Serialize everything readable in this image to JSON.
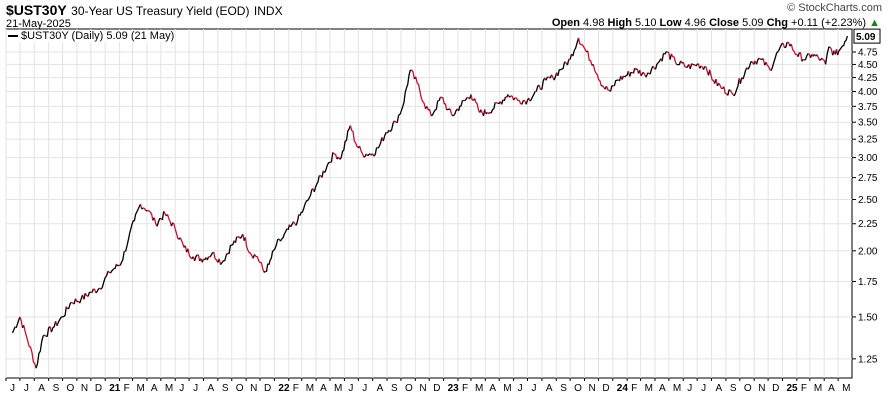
{
  "header": {
    "symbol": "$UST30Y",
    "title": "30-Year US Treasury Yield (EOD)",
    "exchange": "INDX",
    "date": "21-May-2025",
    "brand": "© StockCharts.com",
    "open_label": "Open",
    "open": "4.98",
    "high_label": "High",
    "high": "5.10",
    "low_label": "Low",
    "low": "4.96",
    "close_label": "Close",
    "close": "5.09",
    "chg_label": "Chg",
    "chg": "+0.11 (+2.23%)",
    "up_arrow": "▲"
  },
  "legend": {
    "text": "$UST30Y (Daily) 5.09 (21 May)"
  },
  "last_value_badge": "5.09",
  "chart_data": {
    "type": "line",
    "scale": "log",
    "series": [
      {
        "name": "$UST30Y (Daily)",
        "x": [
          "2020-06-15",
          "2020-07-01",
          "2020-07-15",
          "2020-08-05",
          "2020-08-20",
          "2020-09-10",
          "2020-10-01",
          "2020-10-20",
          "2020-11-10",
          "2020-12-01",
          "2020-12-20",
          "2021-01-10",
          "2021-01-20",
          "2021-02-05",
          "2021-02-20",
          "2021-03-05",
          "2021-03-18",
          "2021-04-05",
          "2021-04-20",
          "2021-05-10",
          "2021-06-01",
          "2021-06-20",
          "2021-07-10",
          "2021-08-01",
          "2021-08-20",
          "2021-09-10",
          "2021-10-01",
          "2021-10-25",
          "2021-11-10",
          "2021-11-25",
          "2021-12-10",
          "2021-12-20",
          "2022-01-05",
          "2022-01-20",
          "2022-02-05",
          "2022-02-20",
          "2022-03-05",
          "2022-03-20",
          "2022-04-05",
          "2022-04-25",
          "2022-05-10",
          "2022-05-25",
          "2022-06-14",
          "2022-06-25",
          "2022-07-10",
          "2022-08-01",
          "2022-08-15",
          "2022-08-30",
          "2022-09-20",
          "2022-10-05",
          "2022-10-21",
          "2022-11-05",
          "2022-11-20",
          "2022-12-05",
          "2022-12-28",
          "2023-01-10",
          "2023-01-20",
          "2023-02-05",
          "2023-03-01",
          "2023-03-20",
          "2023-04-05",
          "2023-05-01",
          "2023-05-20",
          "2023-06-10",
          "2023-07-01",
          "2023-07-20",
          "2023-08-10",
          "2023-08-25",
          "2023-09-10",
          "2023-10-01",
          "2023-10-19",
          "2023-11-05",
          "2023-11-20",
          "2023-12-10",
          "2023-12-27",
          "2024-01-10",
          "2024-02-01",
          "2024-02-20",
          "2024-03-10",
          "2024-04-05",
          "2024-04-25",
          "2024-05-15",
          "2024-06-10",
          "2024-07-01",
          "2024-07-20",
          "2024-08-05",
          "2024-08-25",
          "2024-09-16",
          "2024-10-05",
          "2024-10-25",
          "2024-11-15",
          "2024-12-05",
          "2024-12-25",
          "2025-01-14",
          "2025-02-01",
          "2025-02-20",
          "2025-03-05",
          "2025-03-25",
          "2025-04-04",
          "2025-04-11",
          "2025-04-25",
          "2025-05-05",
          "2025-05-21"
        ],
        "values": [
          1.4,
          1.5,
          1.38,
          1.2,
          1.38,
          1.43,
          1.5,
          1.6,
          1.62,
          1.67,
          1.7,
          1.82,
          1.85,
          1.9,
          2.1,
          2.28,
          2.45,
          2.38,
          2.25,
          2.35,
          2.2,
          2.03,
          1.95,
          1.93,
          1.98,
          1.9,
          2.05,
          2.15,
          1.98,
          1.95,
          1.82,
          1.88,
          2.05,
          2.12,
          2.22,
          2.28,
          2.4,
          2.55,
          2.7,
          2.9,
          3.05,
          3.0,
          3.45,
          3.2,
          3.05,
          3.05,
          3.15,
          3.35,
          3.5,
          3.75,
          4.38,
          4.15,
          3.8,
          3.6,
          3.9,
          3.7,
          3.6,
          3.75,
          3.95,
          3.65,
          3.65,
          3.8,
          3.95,
          3.85,
          3.85,
          4.0,
          4.2,
          4.25,
          4.4,
          4.6,
          5.05,
          4.75,
          4.5,
          4.1,
          4.0,
          4.2,
          4.3,
          4.4,
          4.3,
          4.5,
          4.75,
          4.55,
          4.45,
          4.5,
          4.45,
          4.2,
          4.05,
          3.95,
          4.25,
          4.55,
          4.6,
          4.4,
          4.8,
          4.95,
          4.7,
          4.6,
          4.7,
          4.6,
          4.5,
          4.85,
          4.7,
          4.8,
          5.09
        ]
      }
    ],
    "x_ticks": [
      "J",
      "J",
      "A",
      "S",
      "O",
      "N",
      "D",
      "21",
      "F",
      "M",
      "A",
      "M",
      "J",
      "J",
      "A",
      "S",
      "O",
      "N",
      "D",
      "22",
      "F",
      "M",
      "A",
      "M",
      "J",
      "J",
      "A",
      "S",
      "O",
      "N",
      "D",
      "23",
      "F",
      "M",
      "A",
      "M",
      "J",
      "J",
      "A",
      "S",
      "O",
      "N",
      "D",
      "24",
      "F",
      "M",
      "A",
      "M",
      "J",
      "J",
      "A",
      "S",
      "O",
      "N",
      "D",
      "25",
      "F",
      "M",
      "A",
      "M"
    ],
    "x_tick_dates": [
      "2020-06-01",
      "2020-07-01",
      "2020-08-01",
      "2020-09-01",
      "2020-10-01",
      "2020-11-01",
      "2020-12-01",
      "2021-01-01",
      "2021-02-01",
      "2021-03-01",
      "2021-04-01",
      "2021-05-01",
      "2021-06-01",
      "2021-07-01",
      "2021-08-01",
      "2021-09-01",
      "2021-10-01",
      "2021-11-01",
      "2021-12-01",
      "2022-01-01",
      "2022-02-01",
      "2022-03-01",
      "2022-04-01",
      "2022-05-01",
      "2022-06-01",
      "2022-07-01",
      "2022-08-01",
      "2022-09-01",
      "2022-10-01",
      "2022-11-01",
      "2022-12-01",
      "2023-01-01",
      "2023-02-01",
      "2023-03-01",
      "2023-04-01",
      "2023-05-01",
      "2023-06-01",
      "2023-07-01",
      "2023-08-01",
      "2023-09-01",
      "2023-10-01",
      "2023-11-01",
      "2023-12-01",
      "2024-01-01",
      "2024-02-01",
      "2024-03-01",
      "2024-04-01",
      "2024-05-01",
      "2024-06-01",
      "2024-07-01",
      "2024-08-01",
      "2024-09-01",
      "2024-10-01",
      "2024-11-01",
      "2024-12-01",
      "2025-01-01",
      "2025-02-01",
      "2025-03-01",
      "2025-04-01",
      "2025-05-01"
    ],
    "y_ticks": [
      1.25,
      1.5,
      1.75,
      2.0,
      2.25,
      2.5,
      2.75,
      3.0,
      3.25,
      3.5,
      3.75,
      4.0,
      4.25,
      4.5,
      4.75
    ],
    "y_tick_labels": [
      "1.25",
      "1.50",
      "1.75",
      "2.00",
      "2.25",
      "2.50",
      "2.75",
      "3.00",
      "3.25",
      "3.50",
      "3.75",
      "4.00",
      "4.25",
      "4.50",
      "4.75"
    ],
    "ylim": [
      1.15,
      5.25
    ],
    "xlim": [
      "2020-06-01",
      "2025-05-31"
    ],
    "grid": true,
    "legend_position": "top-left",
    "colors": {
      "up": "#000000",
      "down": "#c8102e",
      "grid": "#e3e3e3",
      "border": "#000000"
    }
  }
}
